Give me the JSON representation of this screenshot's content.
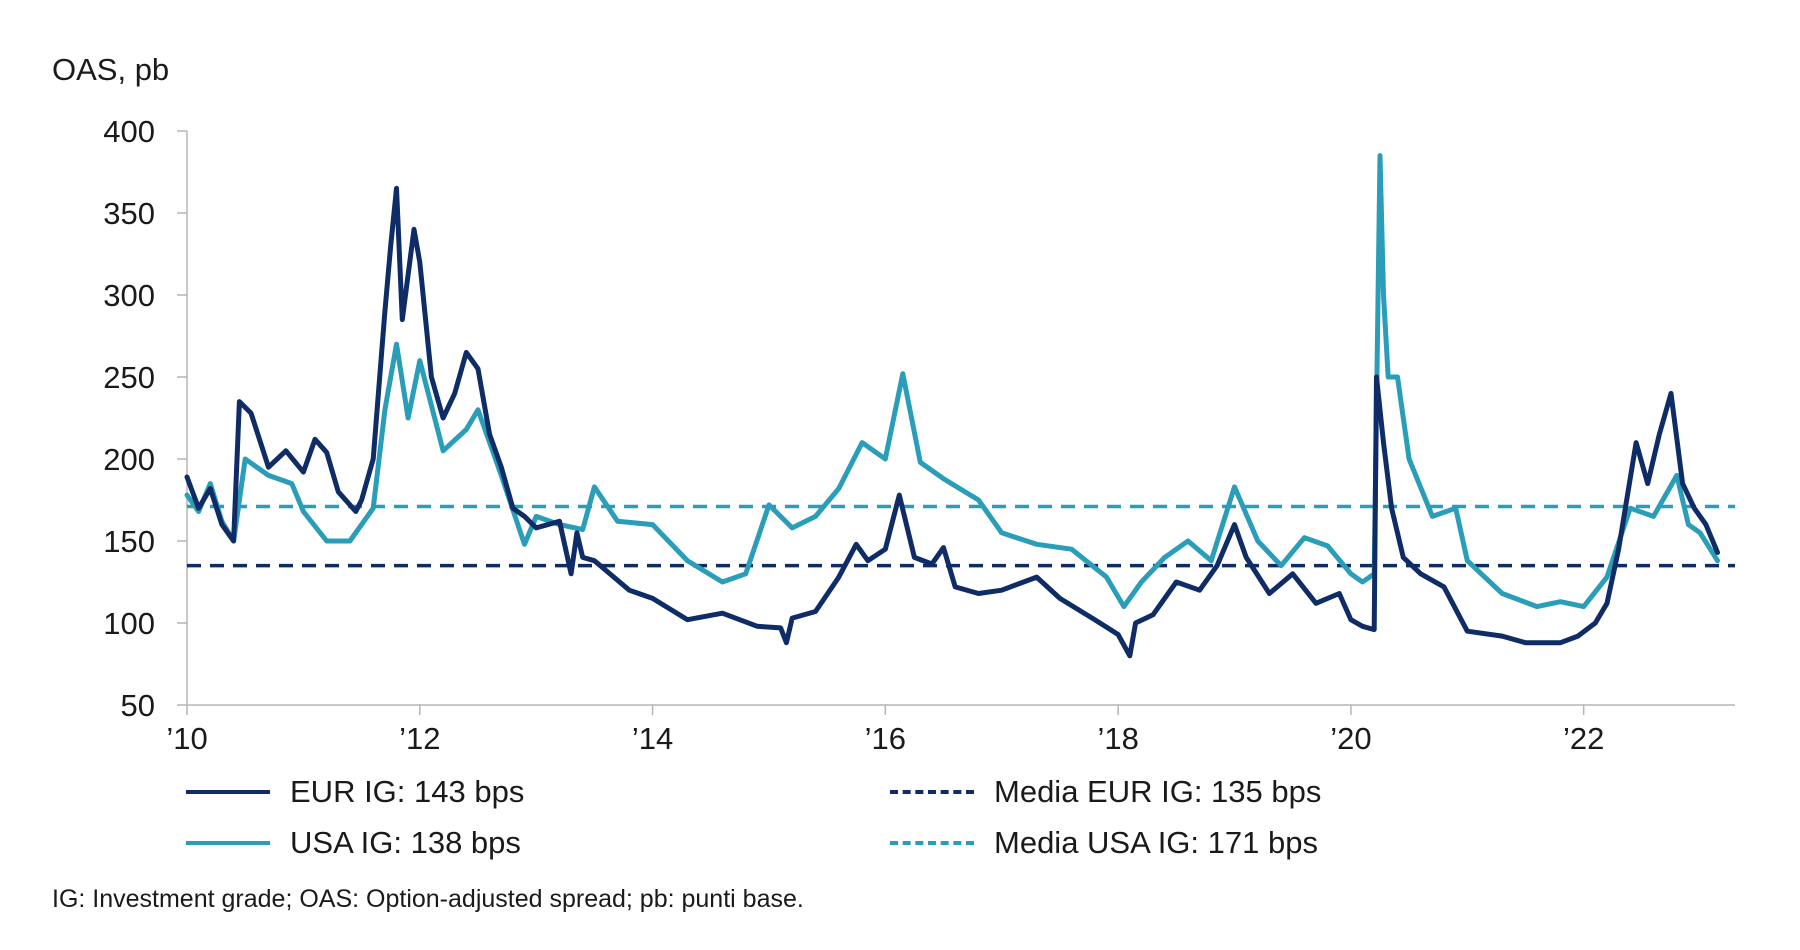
{
  "chart_data": {
    "type": "line",
    "ylabel": "OAS, pb",
    "ylim": [
      50,
      400
    ],
    "xlim": [
      2010,
      2023.3
    ],
    "y_ticks": [
      "50",
      "100",
      "150",
      "200",
      "250",
      "300",
      "350",
      "400"
    ],
    "x_ticks": [
      {
        "value": 2010,
        "label": "’10"
      },
      {
        "value": 2012,
        "label": "’12"
      },
      {
        "value": 2014,
        "label": "’14"
      },
      {
        "value": 2016,
        "label": "’16"
      },
      {
        "value": 2018,
        "label": "’18"
      },
      {
        "value": 2020,
        "label": "’20"
      },
      {
        "value": 2022,
        "label": "’22"
      }
    ],
    "series": [
      {
        "name": "EUR IG",
        "legend_label": "EUR IG: 143 bps",
        "color": "#0f2c66",
        "style": "solid",
        "x": [
          2010.0,
          2010.1,
          2010.2,
          2010.3,
          2010.4,
          2010.45,
          2010.55,
          2010.7,
          2010.85,
          2011.0,
          2011.1,
          2011.2,
          2011.3,
          2011.45,
          2011.5,
          2011.6,
          2011.7,
          2011.75,
          2011.8,
          2011.85,
          2011.95,
          2012.0,
          2012.1,
          2012.2,
          2012.3,
          2012.4,
          2012.5,
          2012.6,
          2012.7,
          2012.8,
          2012.9,
          2013.0,
          2013.2,
          2013.3,
          2013.35,
          2013.4,
          2013.5,
          2013.6,
          2013.8,
          2014.0,
          2014.3,
          2014.6,
          2014.9,
          2015.1,
          2015.15,
          2015.2,
          2015.4,
          2015.6,
          2015.75,
          2015.85,
          2016.0,
          2016.12,
          2016.25,
          2016.4,
          2016.5,
          2016.6,
          2016.8,
          2017.0,
          2017.3,
          2017.5,
          2017.8,
          2018.0,
          2018.1,
          2018.15,
          2018.3,
          2018.5,
          2018.7,
          2018.85,
          2019.0,
          2019.1,
          2019.3,
          2019.5,
          2019.7,
          2019.9,
          2020.0,
          2020.1,
          2020.2,
          2020.22,
          2020.28,
          2020.35,
          2020.45,
          2020.6,
          2020.8,
          2021.0,
          2021.3,
          2021.5,
          2021.8,
          2021.95,
          2022.1,
          2022.2,
          2022.3,
          2022.45,
          2022.55,
          2022.65,
          2022.75,
          2022.85,
          2022.95,
          2023.05,
          2023.15
        ],
        "values": [
          189,
          170,
          182,
          160,
          150,
          235,
          228,
          195,
          205,
          192,
          212,
          204,
          180,
          168,
          175,
          200,
          290,
          330,
          365,
          285,
          340,
          320,
          250,
          225,
          240,
          265,
          255,
          215,
          195,
          170,
          165,
          158,
          162,
          130,
          155,
          140,
          138,
          132,
          120,
          115,
          102,
          106,
          98,
          97,
          88,
          103,
          107,
          128,
          148,
          138,
          145,
          178,
          140,
          136,
          146,
          122,
          118,
          120,
          128,
          115,
          102,
          93,
          80,
          100,
          105,
          125,
          120,
          135,
          160,
          140,
          118,
          130,
          112,
          118,
          102,
          98,
          96,
          250,
          210,
          170,
          140,
          130,
          122,
          95,
          92,
          88,
          88,
          92,
          100,
          112,
          145,
          210,
          185,
          215,
          240,
          185,
          170,
          160,
          143
        ]
      },
      {
        "name": "USA IG",
        "legend_label": "USA IG: 138 bps",
        "color": "#2a9db8",
        "style": "solid",
        "x": [
          2010.0,
          2010.1,
          2010.2,
          2010.3,
          2010.4,
          2010.5,
          2010.7,
          2010.9,
          2011.0,
          2011.2,
          2011.4,
          2011.6,
          2011.7,
          2011.8,
          2011.9,
          2012.0,
          2012.2,
          2012.4,
          2012.5,
          2012.7,
          2012.9,
          2013.0,
          2013.2,
          2013.4,
          2013.5,
          2013.7,
          2014.0,
          2014.3,
          2014.6,
          2014.8,
          2015.0,
          2015.2,
          2015.4,
          2015.6,
          2015.8,
          2016.0,
          2016.15,
          2016.3,
          2016.5,
          2016.8,
          2017.0,
          2017.3,
          2017.6,
          2017.9,
          2018.05,
          2018.2,
          2018.4,
          2018.6,
          2018.8,
          2019.0,
          2019.2,
          2019.4,
          2019.6,
          2019.8,
          2020.0,
          2020.1,
          2020.2,
          2020.25,
          2020.28,
          2020.32,
          2020.4,
          2020.5,
          2020.7,
          2020.9,
          2021.0,
          2021.3,
          2021.6,
          2021.8,
          2022.0,
          2022.2,
          2022.4,
          2022.6,
          2022.8,
          2022.9,
          2023.0,
          2023.15
        ],
        "values": [
          178,
          168,
          185,
          162,
          150,
          200,
          190,
          185,
          168,
          150,
          150,
          170,
          230,
          270,
          225,
          260,
          205,
          218,
          230,
          190,
          148,
          165,
          160,
          157,
          183,
          162,
          160,
          138,
          125,
          130,
          172,
          158,
          165,
          182,
          210,
          200,
          252,
          198,
          188,
          175,
          155,
          148,
          145,
          128,
          110,
          125,
          140,
          150,
          138,
          183,
          150,
          135,
          152,
          147,
          130,
          125,
          130,
          385,
          300,
          250,
          250,
          200,
          165,
          170,
          138,
          118,
          110,
          113,
          110,
          128,
          170,
          165,
          190,
          160,
          155,
          138
        ]
      }
    ],
    "reference_lines": [
      {
        "name": "Media EUR IG",
        "legend_label": "Media EUR IG: 135 bps",
        "value": 135,
        "color": "#0f2c66",
        "style": "dashed"
      },
      {
        "name": "Media USA IG",
        "legend_label": "Media USA IG: 171 bps",
        "value": 171,
        "color": "#2a9db8",
        "style": "dashed"
      }
    ]
  },
  "footnote": "IG: Investment grade; OAS: Option-adjusted spread; pb: punti base."
}
